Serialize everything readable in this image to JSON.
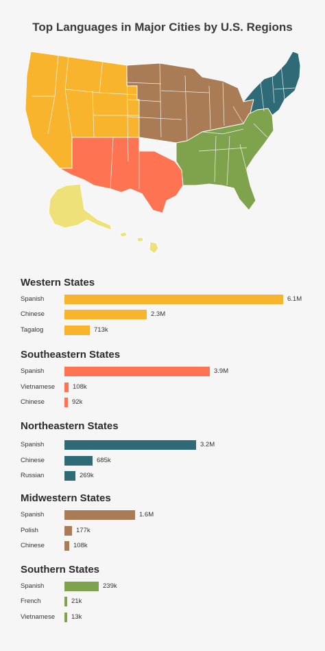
{
  "title": "Top Languages in Major Cities by U.S. Regions",
  "colors": {
    "west": "#F7B42C",
    "southeast": "#FE7452",
    "northeast": "#2F6B77",
    "midwest": "#A97C55",
    "south": "#7FA24D",
    "alaska_hawaii": "#EFE17A"
  },
  "chart_data": [
    {
      "type": "bar",
      "orientation": "horizontal",
      "title": "Western States",
      "color": "#F7B42C",
      "categories": [
        "Spanish",
        "Chinese",
        "Tagalog"
      ],
      "values": [
        6100000,
        2300000,
        713000
      ],
      "labels": [
        "6.1M",
        "2.3M",
        "713k"
      ]
    },
    {
      "type": "bar",
      "orientation": "horizontal",
      "title": "Southeastern States",
      "color": "#FE7452",
      "categories": [
        "Spanish",
        "Vietnamese",
        "Chinese"
      ],
      "values": [
        3900000,
        108000,
        92000
      ],
      "labels": [
        "3.9M",
        "108k",
        "92k"
      ]
    },
    {
      "type": "bar",
      "orientation": "horizontal",
      "title": "Northeastern States",
      "color": "#2F6B77",
      "categories": [
        "Spanish",
        "Chinese",
        "Russian"
      ],
      "values": [
        3200000,
        685000,
        269000
      ],
      "labels": [
        "3.2M",
        "685k",
        "269k"
      ]
    },
    {
      "type": "bar",
      "orientation": "horizontal",
      "title": "Midwestern States",
      "color": "#A97C55",
      "categories": [
        "Spanish",
        "Polish",
        "Chinese"
      ],
      "values": [
        1600000,
        177000,
        108000
      ],
      "labels": [
        "1.6M",
        "177k",
        "108k"
      ]
    },
    {
      "type": "bar",
      "orientation": "horizontal",
      "title": "Southern States",
      "color": "#7FA24D",
      "categories": [
        "Spanish",
        "French",
        "Vietnamese"
      ],
      "values": [
        239000,
        21000,
        13000
      ],
      "labels": [
        "239k",
        "21k",
        "13k"
      ]
    }
  ]
}
